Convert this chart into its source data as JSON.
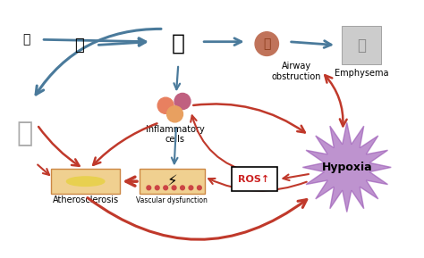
{
  "bg_color": "#ffffff",
  "labels": {
    "airway_obstruction": "Airway\nobstruction",
    "emphysema": "Emphysema",
    "inflammatory": "Inflammatory\ncells",
    "atherosclerosis": "Atherosclerosis",
    "vascular": "Vascular dysfunction",
    "ros": "ROS↑",
    "hypoxia": "Hypoxia"
  },
  "arrow_colors": {
    "gray": "#4a7a9b",
    "red": "#c0392b",
    "dark_red": "#8b0000"
  },
  "hypoxia_color": "#9b59b6",
  "hypoxia_text_color": "#000000",
  "ros_box_color": "#ffffff",
  "ros_border_color": "#000000",
  "label_fontsize": 7,
  "title_fontsize": 8
}
